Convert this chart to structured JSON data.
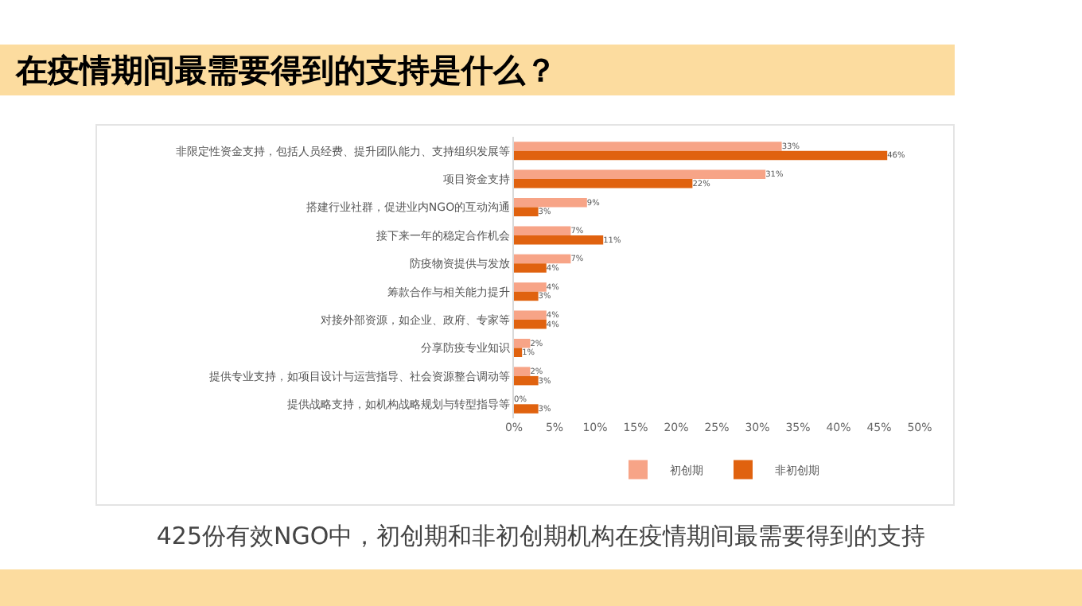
{
  "chart_data": {
    "type": "bar",
    "orientation": "horizontal",
    "title": "在疫情期间最需要得到的支持是什么？",
    "categories": [
      "非限定性资金支持，包括人员经费、提升团队能力、支持组织发展等",
      "项目资金支持",
      "搭建行业社群，促进业内NGO的互动沟通",
      "接下来一年的稳定合作机会",
      "防疫物资提供与发放",
      "筹款合作与相关能力提升",
      "对接外部资源，如企业、政府、专家等",
      "分享防疫专业知识",
      "提供专业支持，如项目设计与运营指导、社会资源整合调动等",
      "提供战略支持，如机构战略规划与转型指导等"
    ],
    "series": [
      {
        "name": "初创期",
        "color": "#f7a487",
        "values": [
          33,
          31,
          9,
          7,
          7,
          4,
          4,
          2,
          2,
          0
        ],
        "value_labels": [
          "33%",
          "31%",
          "9%",
          "7%",
          "7%",
          "4%",
          "4%",
          "2%",
          "2%",
          "0%"
        ]
      },
      {
        "name": "非初创期",
        "color": "#e0620f",
        "values": [
          46,
          22,
          3,
          11,
          4,
          3,
          4,
          1,
          3,
          3
        ],
        "value_labels": [
          "46%",
          "22%",
          "3%",
          "11%",
          "4%",
          "3%",
          "4%",
          "1%",
          "3%",
          "3%"
        ]
      }
    ],
    "xlim": [
      0,
      50
    ],
    "xticks": [
      {
        "value": 0,
        "label": "0%"
      },
      {
        "value": 5,
        "label": "5%"
      },
      {
        "value": 10,
        "label": "10%"
      },
      {
        "value": 15,
        "label": "15%"
      },
      {
        "value": 20,
        "label": "20%"
      },
      {
        "value": 25,
        "label": "25%"
      },
      {
        "value": 30,
        "label": "30%"
      },
      {
        "value": 35,
        "label": "35%"
      },
      {
        "value": 40,
        "label": "40%"
      },
      {
        "value": 45,
        "label": "45%"
      },
      {
        "value": 50,
        "label": "50%"
      }
    ],
    "legend": "bottom",
    "grid": false,
    "annotations": [
      "425份有效NGO中，初创期和非初创期机构在疫情期间最需要得到的支持"
    ]
  }
}
